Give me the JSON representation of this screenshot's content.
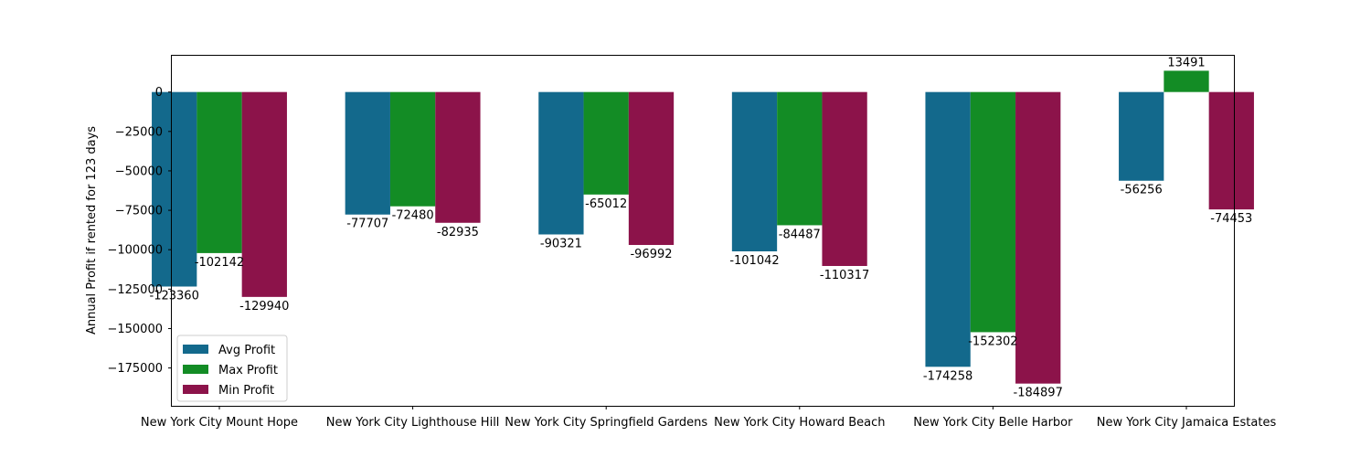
{
  "chart_data": {
    "type": "bar",
    "title": "",
    "xlabel": "",
    "ylabel": "Annual Profit if rented for 123 days",
    "ylim": [
      -199000,
      23000
    ],
    "yticks": [
      0,
      -25000,
      -50000,
      -75000,
      -100000,
      -125000,
      -150000,
      -175000
    ],
    "ytick_labels": [
      "0",
      "−25000",
      "−50000",
      "−75000",
      "−100000",
      "−125000",
      "−150000",
      "−175000"
    ],
    "categories": [
      "New York City Mount Hope",
      "New York City Lighthouse Hill",
      "New York City Springfield Gardens",
      "New York City Howard Beach",
      "New York City Belle Harbor",
      "New York City Jamaica Estates"
    ],
    "series": [
      {
        "name": "Avg Profit",
        "color": "#13698c",
        "values": [
          -123360,
          -77707,
          -90321,
          -101042,
          -174258,
          -56256
        ]
      },
      {
        "name": "Max Profit",
        "color": "#138c25",
        "values": [
          -102142,
          -72480,
          -65012,
          -84487,
          -152302,
          13491
        ]
      },
      {
        "name": "Min Profit",
        "color": "#8c134a",
        "values": [
          -129940,
          -82935,
          -96992,
          -110317,
          -184897,
          -74453
        ]
      }
    ],
    "legend_position": "lower-left",
    "grid": false
  }
}
